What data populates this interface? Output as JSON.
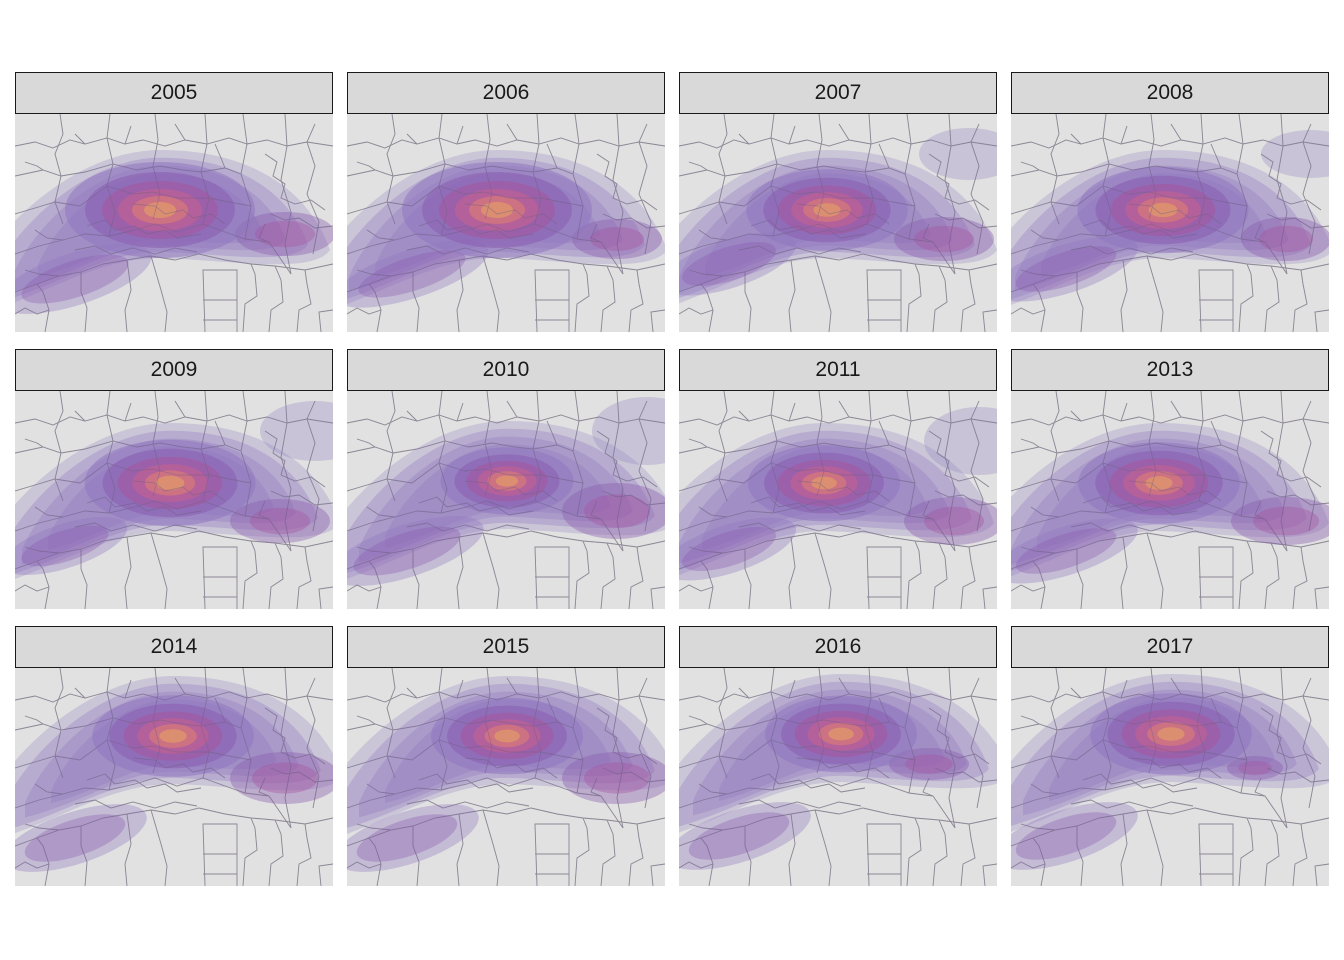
{
  "panels": [
    {
      "year": "2005",
      "variant": 0
    },
    {
      "year": "2006",
      "variant": 1
    },
    {
      "year": "2007",
      "variant": 2
    },
    {
      "year": "2008",
      "variant": 3
    },
    {
      "year": "2009",
      "variant": 4
    },
    {
      "year": "2010",
      "variant": 5
    },
    {
      "year": "2011",
      "variant": 6
    },
    {
      "year": "2013",
      "variant": 7
    },
    {
      "year": "2014",
      "variant": 8
    },
    {
      "year": "2015",
      "variant": 9
    },
    {
      "year": "2016",
      "variant": 10
    },
    {
      "year": "2017",
      "variant": 11
    }
  ],
  "colors": {
    "map_background": "#e1e1e1",
    "boundary_lines": "#a8a8a8",
    "density_ramp": [
      "#9b8cc4",
      "#8f76bf",
      "#8a5cb0",
      "#a6559f",
      "#c9608c",
      "#e1826f",
      "#eaa763"
    ],
    "strip_fill": "#d9d9d9",
    "strip_border": "#1a1a1a"
  }
}
